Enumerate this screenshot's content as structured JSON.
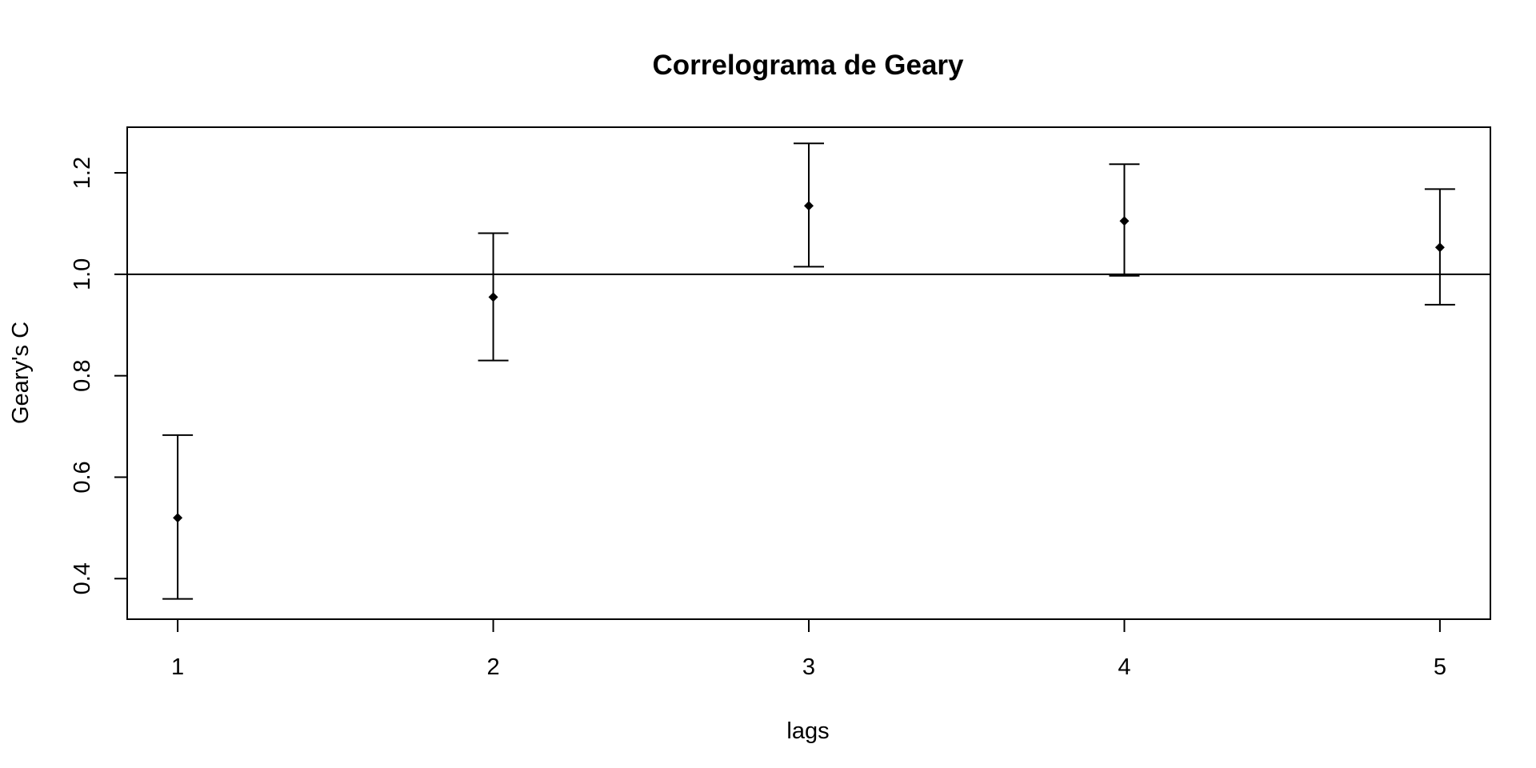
{
  "chart_data": {
    "type": "scatter",
    "title": "Correlograma de Geary",
    "xlabel": "lags",
    "ylabel": "Geary's C",
    "x": [
      1,
      2,
      3,
      4,
      5
    ],
    "values": [
      0.52,
      0.955,
      1.135,
      1.105,
      1.053
    ],
    "lower": [
      0.36,
      0.83,
      1.015,
      0.997,
      0.94
    ],
    "upper": [
      0.683,
      1.081,
      1.258,
      1.217,
      1.168
    ],
    "reference_line": 1.0,
    "xlim": [
      0.84,
      5.16
    ],
    "ylim": [
      0.32,
      1.29
    ],
    "x_ticks": [
      "1",
      "2",
      "3",
      "4",
      "5"
    ],
    "y_ticks": [
      "0.4",
      "0.6",
      "0.8",
      "1.0",
      "1.2"
    ],
    "grid": false,
    "marker": "diamond",
    "colors": {
      "marks": "#000000",
      "background": "#ffffff"
    }
  }
}
